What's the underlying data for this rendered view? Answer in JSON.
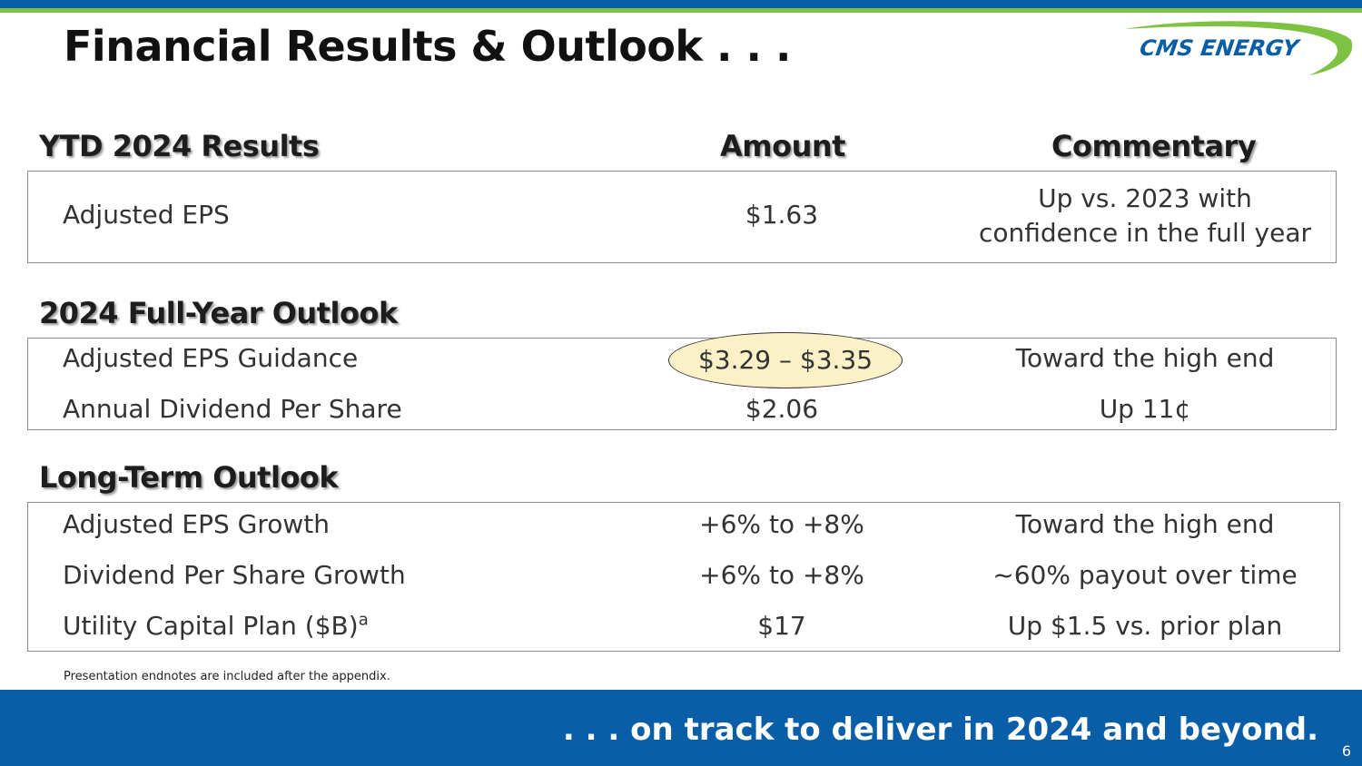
{
  "slide": {
    "title": "Financial Results & Outlook . . .",
    "logo_text": "CMS ENERGY",
    "footnote": "Presentation endnotes are included after the appendix.",
    "tagline": ". . . on track to deliver in 2024 and beyond.",
    "page_number": "6"
  },
  "headers": {
    "ytd": "YTD 2024 Results",
    "amount": "Amount",
    "commentary": "Commentary",
    "full_year": "2024 Full-Year Outlook",
    "long_term": "Long-Term Outlook"
  },
  "ytd_rows": [
    {
      "label": "Adjusted EPS",
      "amount": "$1.63",
      "commentary_line1": "Up vs. 2023 with",
      "commentary_line2": "confidence in the full year"
    }
  ],
  "full_year_rows": [
    {
      "label": "Adjusted EPS Guidance",
      "amount": "$3.29 – $3.35",
      "commentary": "Toward the high end"
    },
    {
      "label": "Annual Dividend Per Share",
      "amount": "$2.06",
      "commentary": "Up 11¢"
    }
  ],
  "long_term_rows": [
    {
      "label": "Adjusted EPS Growth",
      "amount": "+6% to +8%",
      "commentary": "Toward the high end"
    },
    {
      "label": "Dividend Per Share Growth",
      "amount": "+6% to +8%",
      "commentary": "~60% payout over time"
    },
    {
      "label": "Utility Capital Plan ($B)",
      "superscript": "a",
      "amount": "$17",
      "commentary": "Up $1.5 vs. prior plan"
    }
  ],
  "colors": {
    "brand_blue": "#0a5ea8",
    "brand_green": "#7dc242",
    "highlight_fill": "#fbf1c6"
  }
}
